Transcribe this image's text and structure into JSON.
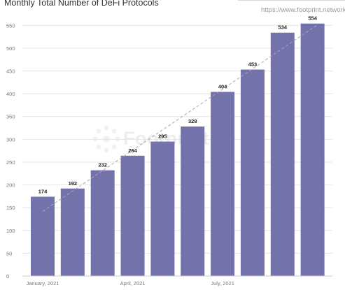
{
  "header": {
    "title": "Monthly Total Number of DeFi Protocols",
    "source": "https://www.footprint.network"
  },
  "watermark": {
    "icon": "footprint-logo-icon",
    "text": "Footprint"
  },
  "colors": {
    "bar": "#7472ab",
    "trend": "#aaaaaa",
    "grid": "#e4e4e4"
  },
  "chart_data": {
    "type": "bar",
    "title": "Monthly Total Number of DeFi Protocols",
    "categories": [
      "2021-01",
      "2021-02",
      "2021-03",
      "2021-04",
      "2021-05",
      "2021-06",
      "2021-07",
      "2021-08",
      "2021-09",
      "2021-10"
    ],
    "values": [
      174,
      192,
      232,
      264,
      295,
      328,
      404,
      453,
      534,
      554
    ],
    "data_labels": [
      "174",
      "192",
      "232",
      "264",
      "295",
      "328",
      "404",
      "453",
      "534",
      "554"
    ],
    "x_tick_labels": [
      {
        "category": "2021-01",
        "label": "January, 2021"
      },
      {
        "category": "2021-04",
        "label": "April, 2021"
      },
      {
        "category": "2021-07",
        "label": "July, 2021"
      }
    ],
    "y_ticks": [
      0,
      50,
      100,
      150,
      200,
      250,
      300,
      350,
      400,
      450,
      500,
      550
    ],
    "ylim": [
      0,
      575
    ],
    "xlabel": "",
    "ylabel": "",
    "grid": true,
    "legend": false,
    "trendline": {
      "type": "linear",
      "style": "dashed"
    }
  }
}
